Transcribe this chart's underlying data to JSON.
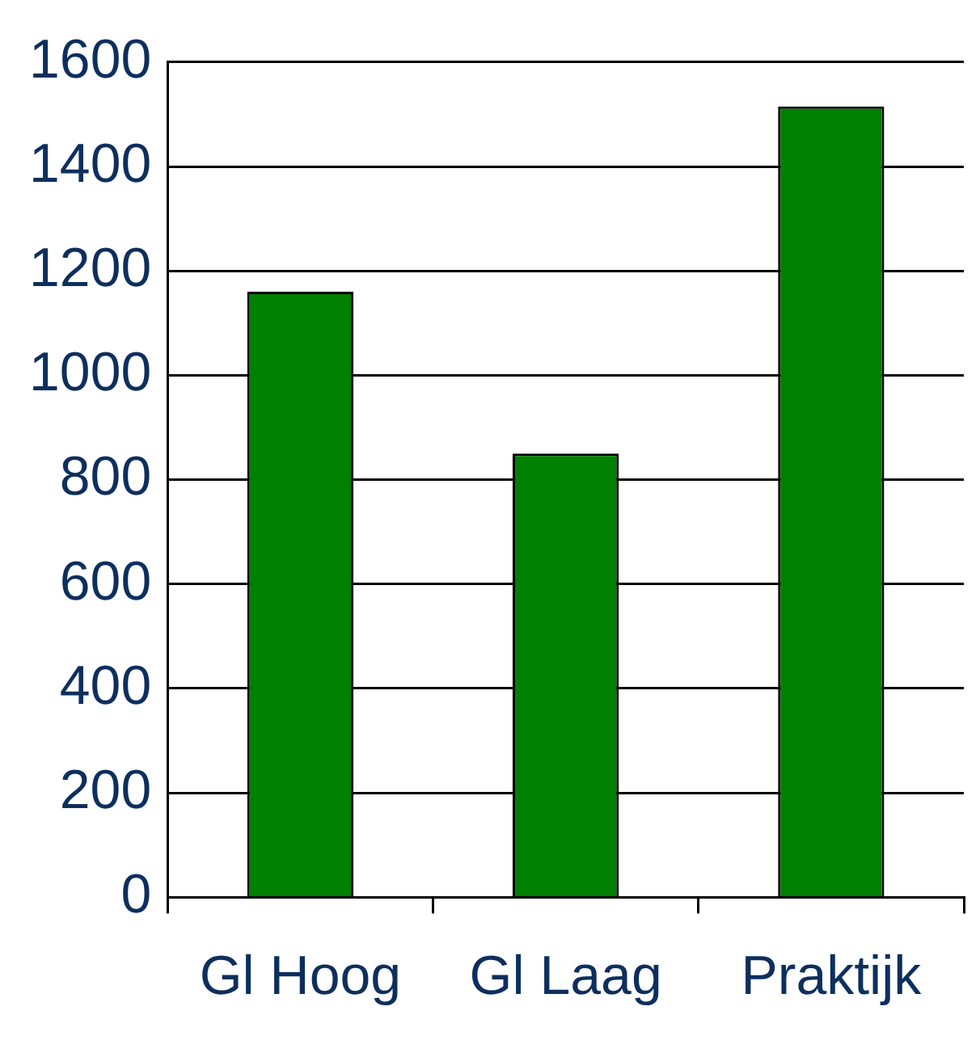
{
  "chart_data": {
    "type": "bar",
    "categories": [
      "Gl Hoog",
      "Gl Laag",
      "Praktijk"
    ],
    "values": [
      1160,
      850,
      1515
    ],
    "color": "#008000",
    "ylim": [
      0,
      1600
    ],
    "yticks": [
      0,
      200,
      400,
      600,
      800,
      1000,
      1200,
      1400,
      1600
    ],
    "grid": "y",
    "legend": false
  }
}
